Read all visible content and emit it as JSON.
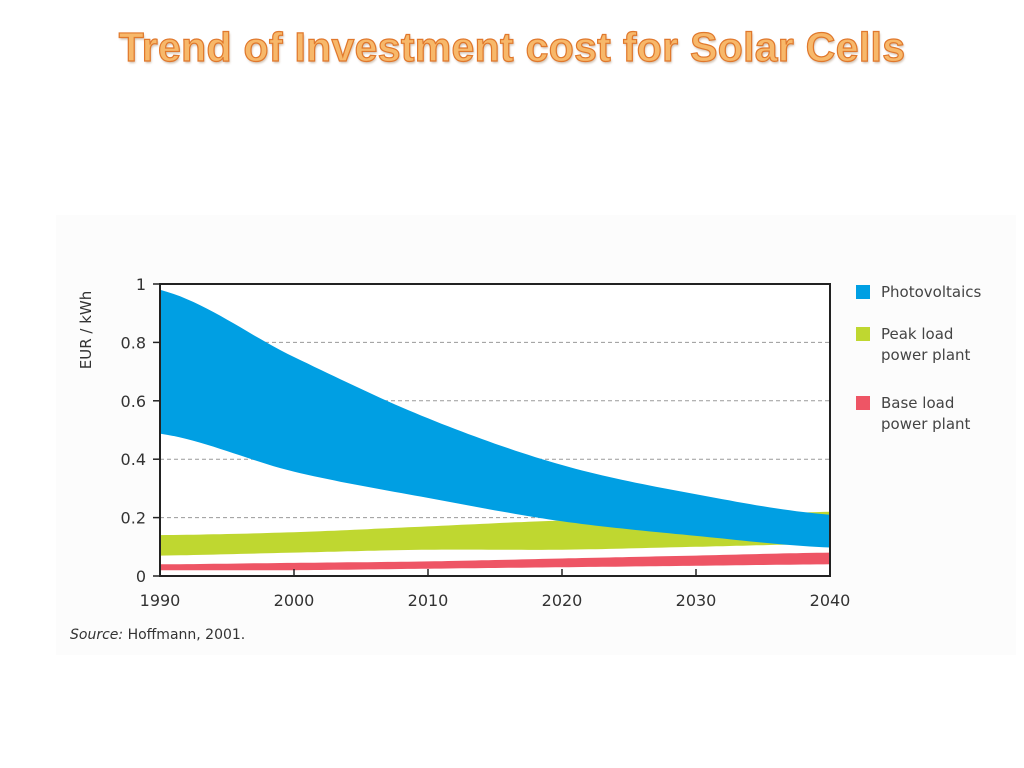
{
  "slide": {
    "title": "Trend of Investment cost for Solar Cells"
  },
  "source": {
    "label": "Source:",
    "text": "Hoffmann, 2001."
  },
  "colors": {
    "photovoltaics": "#009fe3",
    "peak_load": "#bfd730",
    "base_load": "#ee5565",
    "title_fill": "#f7b86a",
    "title_stroke": "#e0782c"
  },
  "chart_data": {
    "type": "area",
    "title": "",
    "xlabel": "",
    "ylabel": "EUR / kWh",
    "xlim": [
      1990,
      2040
    ],
    "ylim": [
      0,
      1
    ],
    "x_ticks": [
      1990,
      2000,
      2010,
      2020,
      2030,
      2040
    ],
    "x_tick_labels": [
      "1990",
      "2000",
      "2010",
      "2020",
      "2030",
      "2040"
    ],
    "y_ticks": [
      0,
      0.2,
      0.4,
      0.6,
      0.8,
      1
    ],
    "y_tick_labels": [
      "0",
      "0.2",
      "0.4",
      "0.6",
      "0.8",
      "1"
    ],
    "grid": "horizontal dashed",
    "legend_position": "right",
    "x": [
      1990,
      2000,
      2010,
      2020,
      2030,
      2040
    ],
    "series": [
      {
        "name": "Photovoltaics",
        "legend_label": [
          "Photovoltaics"
        ],
        "color": "#009fe3",
        "upper": [
          0.98,
          0.75,
          0.54,
          0.38,
          0.28,
          0.21
        ],
        "lower": [
          0.49,
          0.36,
          0.27,
          0.19,
          0.14,
          0.1
        ]
      },
      {
        "name": "Peak load power plant",
        "legend_label": [
          "Peak load",
          "power plant"
        ],
        "color": "#bfd730",
        "upper": [
          0.14,
          0.15,
          0.17,
          0.19,
          0.2,
          0.22
        ],
        "lower": [
          0.07,
          0.08,
          0.09,
          0.09,
          0.1,
          0.11
        ]
      },
      {
        "name": "Base load power plant",
        "legend_label": [
          "Base load",
          "power plant"
        ],
        "color": "#ee5565",
        "upper": [
          0.04,
          0.045,
          0.05,
          0.06,
          0.07,
          0.08
        ],
        "lower": [
          0.02,
          0.02,
          0.025,
          0.03,
          0.035,
          0.04
        ]
      }
    ]
  }
}
